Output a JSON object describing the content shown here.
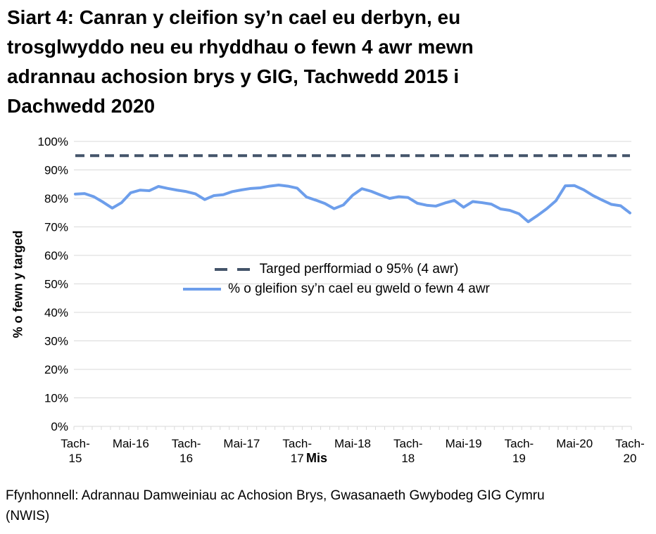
{
  "page": {
    "background": "#FFFFFF"
  },
  "title": {
    "lines": [
      "Siart 4: Canran y cleifion sy’n cael eu derbyn, eu",
      "trosglwyddo neu eu rhyddhau o fewn 4 awr mewn",
      "adrannau achosion brys y GIG, Tachwedd 2015 i",
      "Dachwedd 2020"
    ]
  },
  "chart_data": {
    "type": "line",
    "title": "",
    "xlabel": "Mis",
    "ylabel": "% o fewn y targed",
    "ylim": [
      0,
      100
    ],
    "y_ticks": [
      0,
      10,
      20,
      30,
      40,
      50,
      60,
      70,
      80,
      90,
      100
    ],
    "y_tick_suffix": "%",
    "grid": "horizontal",
    "gridline_color": "#D9D9D9",
    "tick_color": "#D9D9D9",
    "n_points": 61,
    "x_start": "Tachwedd 2015",
    "x_end": "Tachwedd 2020",
    "x_tick_positions": [
      0,
      6,
      12,
      18,
      24,
      30,
      36,
      42,
      48,
      54,
      60
    ],
    "x_tick_labels": [
      "Tach-\n15",
      "Mai-16",
      "Tach-\n16",
      "Mai-17",
      "Tach-\n17",
      "Mai-18",
      "Tach-\n18",
      "Mai-19",
      "Tach-\n19",
      "Mai-20",
      "Tach-\n20"
    ],
    "legend_position": "inside-center",
    "series": [
      {
        "name": "Targed perfformiad o 95% (4 awr)",
        "style": "dashed",
        "color": "#44546A",
        "constant_value": 95
      },
      {
        "name": "% o gleifion sy’n cael eu gweld o fewn 4 awr",
        "style": "solid",
        "color": "#6D9EEB",
        "values": [
          81.5,
          81.7,
          80.6,
          78.7,
          76.6,
          78.5,
          82.0,
          82.9,
          82.7,
          84.2,
          83.5,
          82.9,
          82.4,
          81.6,
          79.6,
          81.0,
          81.3,
          82.4,
          83.0,
          83.5,
          83.7,
          84.3,
          84.7,
          84.3,
          83.6,
          80.5,
          79.4,
          78.2,
          76.4,
          77.7,
          81.1,
          83.4,
          82.5,
          81.2,
          80.0,
          80.6,
          80.3,
          78.3,
          77.6,
          77.3,
          78.4,
          79.3,
          76.9,
          78.9,
          78.5,
          78.0,
          76.3,
          75.8,
          74.6,
          71.8,
          74.0,
          76.4,
          79.2,
          84.4,
          84.5,
          83.0,
          81.0,
          79.4,
          77.9,
          77.4,
          74.9
        ]
      }
    ]
  },
  "source": {
    "lines": [
      "Ffynhonnell: Adrannau Damweiniau ac Achosion Brys, Gwasanaeth Gwybodeg GIG Cymru",
      "(NWIS)"
    ]
  }
}
